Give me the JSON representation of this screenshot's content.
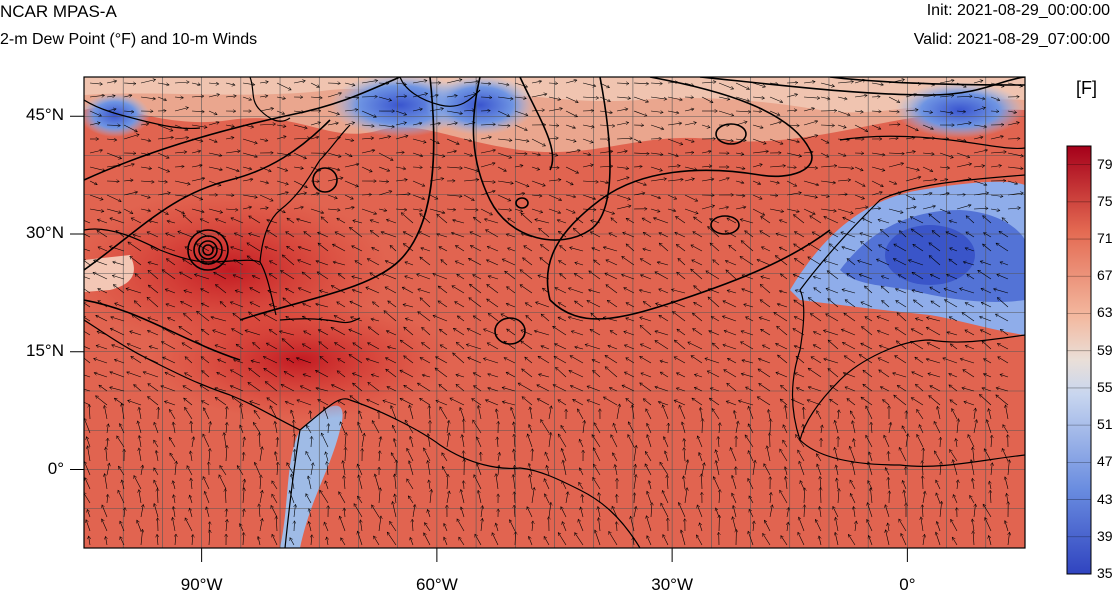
{
  "header": {
    "title": "NCAR MPAS-A",
    "field": "2-m Dew Point (°F) and 10-m Winds",
    "init": "Init: 2021-08-29_00:00:00",
    "valid": "Valid: 2021-08-29_07:00:00"
  },
  "map": {
    "lat_labels": [
      "45°N",
      "30°N",
      "15°N",
      "0°"
    ],
    "lat_values": [
      45,
      30,
      15,
      0
    ],
    "lon_labels": [
      "90°W",
      "60°W",
      "30°W",
      "0°"
    ],
    "lon_values": [
      -90,
      -60,
      -30,
      0
    ],
    "lon_range": [
      -105,
      15
    ],
    "lat_range": [
      -10,
      50
    ]
  },
  "colorbar": {
    "unit": "[F]",
    "labels": [
      "79",
      "75",
      "71",
      "67",
      "63",
      "59",
      "55",
      "51",
      "47",
      "43",
      "39",
      "35"
    ],
    "min": 35,
    "max": 81,
    "colors": {
      "low": "#3a53c7",
      "mid": "#e6e6e6",
      "high": "#b3001a"
    }
  }
}
